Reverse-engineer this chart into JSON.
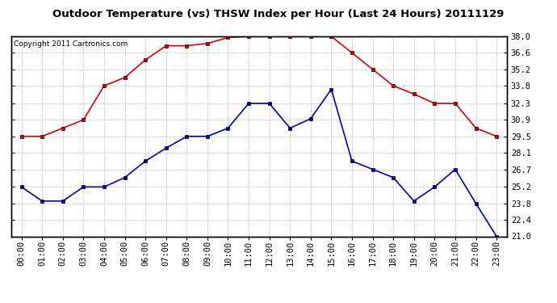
{
  "title": "Outdoor Temperature (vs) THSW Index per Hour (Last 24 Hours) 20111129",
  "copyright": "Copyright 2011 Cartronics.com",
  "hours": [
    "00:00",
    "01:00",
    "02:00",
    "03:00",
    "04:00",
    "05:00",
    "06:00",
    "07:00",
    "08:00",
    "09:00",
    "10:00",
    "11:00",
    "12:00",
    "13:00",
    "14:00",
    "15:00",
    "16:00",
    "17:00",
    "18:00",
    "19:00",
    "20:00",
    "21:00",
    "22:00",
    "23:00"
  ],
  "red_data": [
    29.5,
    29.5,
    30.2,
    30.9,
    33.8,
    34.5,
    36.0,
    37.2,
    37.2,
    37.4,
    37.9,
    38.0,
    38.0,
    38.0,
    38.0,
    38.0,
    36.6,
    35.2,
    33.8,
    33.1,
    32.3,
    32.3,
    30.2,
    29.5
  ],
  "blue_data": [
    25.2,
    24.0,
    24.0,
    25.2,
    25.2,
    26.0,
    27.4,
    28.5,
    29.5,
    29.5,
    30.2,
    32.3,
    32.3,
    30.2,
    31.0,
    33.5,
    27.4,
    26.7,
    26.0,
    24.0,
    25.2,
    26.7,
    23.8,
    21.0
  ],
  "ylim": [
    21.0,
    38.0
  ],
  "yticks": [
    21.0,
    22.4,
    23.8,
    25.2,
    26.7,
    28.1,
    29.5,
    30.9,
    32.3,
    33.8,
    35.2,
    36.6,
    38.0
  ],
  "red_color": "#dd0000",
  "blue_color": "#0000bb",
  "background_color": "#ffffff",
  "plot_bg_color": "#ffffff",
  "grid_color": "#bbbbbb",
  "title_fontsize": 9.5,
  "copyright_fontsize": 6.5,
  "tick_fontsize": 7.5
}
